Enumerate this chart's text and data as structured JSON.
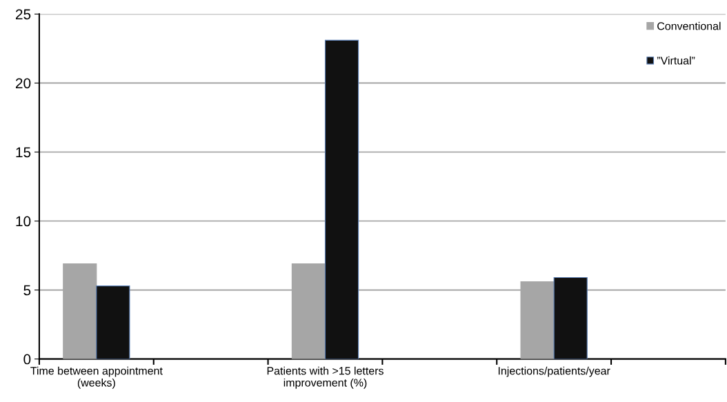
{
  "chart_data": {
    "type": "bar",
    "categories": [
      "Time between appointment\n(weeks)",
      null,
      "Patients with >15 letters\nimprovement (%)",
      null,
      "Injections/patients/year",
      null
    ],
    "series": [
      {
        "name": "Conventional",
        "color": "#a6a6a6",
        "values": [
          6.9,
          null,
          6.9,
          null,
          5.6,
          null
        ]
      },
      {
        "name": "”Virtual”",
        "color": "#111111",
        "values": [
          5.3,
          null,
          23.1,
          null,
          5.9,
          null
        ]
      }
    ],
    "ylim": [
      0,
      25
    ],
    "yticks": [
      0,
      5,
      10,
      15,
      20,
      25
    ],
    "grid": "y",
    "legend": "top right"
  }
}
